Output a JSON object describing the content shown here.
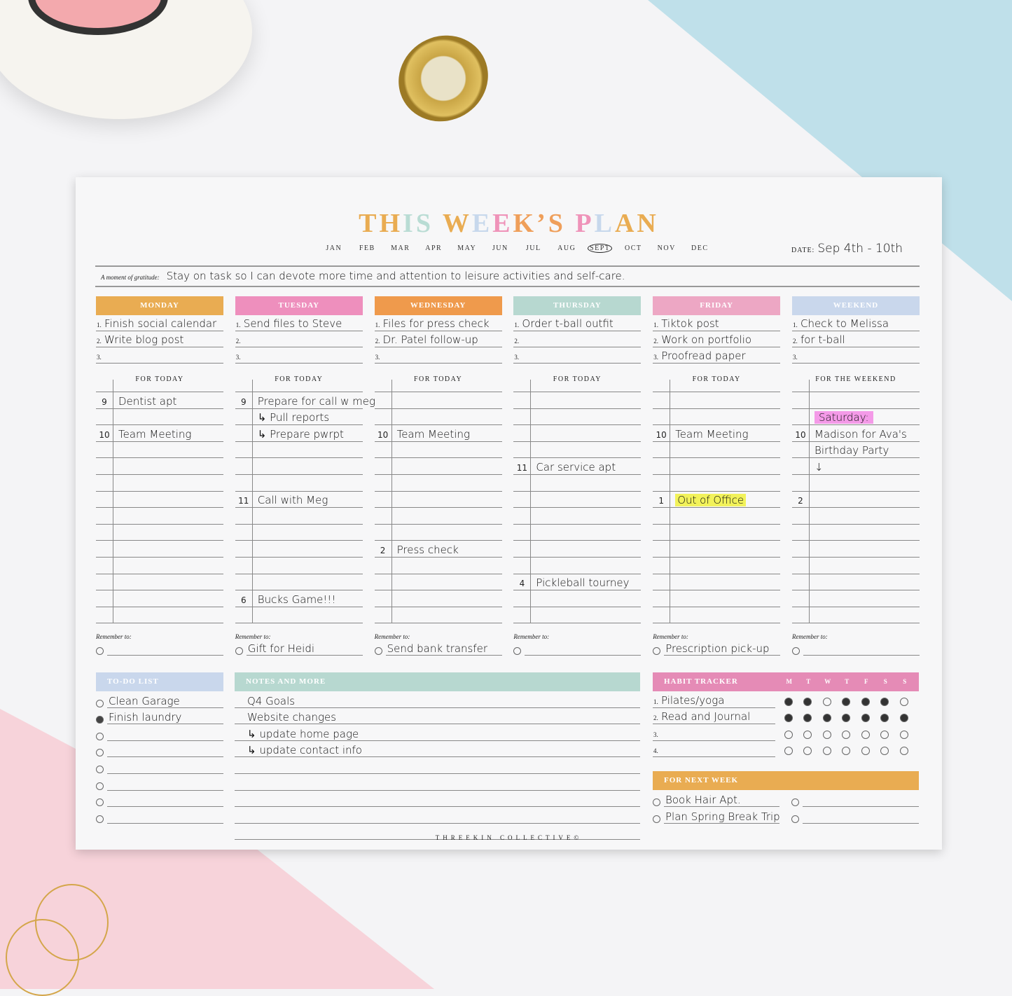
{
  "title": {
    "letters": [
      "T",
      "H",
      "I",
      "S",
      " ",
      "W",
      "E",
      "E",
      "K",
      "’",
      "S",
      " ",
      "P",
      "L",
      "A",
      "N"
    ],
    "colors": [
      "#e9ac52",
      "#e9ac52",
      "#b9dcd4",
      "#b9dcd4",
      "",
      "#e9ac52",
      "#c7d8ec",
      "#ef93b9",
      "#ef9f5a",
      "#ef9f5a",
      "#ef9f5a",
      "",
      "#ef93b9",
      "#c7d8ec",
      "#e9ac52",
      "#e9ac52"
    ]
  },
  "months": [
    "JAN",
    "FEB",
    "MAR",
    "APR",
    "MAY",
    "JUN",
    "JUL",
    "AUG",
    "SEPT",
    "OCT",
    "NOV",
    "DEC"
  ],
  "selected_month": "SEPT",
  "date": {
    "label": "DATE:",
    "value": "Sep 4th - 10th"
  },
  "gratitude": {
    "label": "A moment of gratitude:",
    "text": "Stay on task so I can devote more time and attention to leisure activities and self-care."
  },
  "days": [
    {
      "name": "MONDAY",
      "color": "#e9ac52",
      "tasks": [
        "Finish social calendar",
        "Write blog post",
        ""
      ],
      "sub": "FOR TODAY",
      "slots": [
        [
          "9",
          "Dentist apt"
        ],
        [
          "",
          ""
        ],
        [
          "10",
          "Team Meeting"
        ],
        [
          "",
          ""
        ],
        [
          "",
          ""
        ],
        [
          "",
          ""
        ],
        [
          "",
          ""
        ],
        [
          "",
          ""
        ],
        [
          "",
          ""
        ],
        [
          "",
          ""
        ],
        [
          "",
          ""
        ],
        [
          "",
          ""
        ],
        [
          "",
          ""
        ],
        [
          "",
          ""
        ]
      ],
      "remember": ""
    },
    {
      "name": "TUESDAY",
      "color": "#ee8fbd",
      "tasks": [
        "Send files to Steve",
        "",
        ""
      ],
      "sub": "FOR TODAY",
      "slots": [
        [
          "9",
          "Prepare for call w meg"
        ],
        [
          "",
          "↳ Pull reports"
        ],
        [
          "",
          "↳ Prepare pwrpt"
        ],
        [
          "",
          ""
        ],
        [
          "",
          ""
        ],
        [
          "",
          ""
        ],
        [
          "11",
          "Call with Meg"
        ],
        [
          "",
          ""
        ],
        [
          "",
          ""
        ],
        [
          "",
          ""
        ],
        [
          "",
          ""
        ],
        [
          "",
          ""
        ],
        [
          "6",
          "Bucks Game!!!"
        ],
        [
          "",
          ""
        ]
      ],
      "remember": "Gift for Heidi"
    },
    {
      "name": "WEDNESDAY",
      "color": "#ef9a4c",
      "tasks": [
        "Files for press check",
        "Dr. Patel follow-up",
        ""
      ],
      "sub": "FOR TODAY",
      "slots": [
        [
          "",
          ""
        ],
        [
          "",
          ""
        ],
        [
          "10",
          "Team Meeting"
        ],
        [
          "",
          ""
        ],
        [
          "",
          ""
        ],
        [
          "",
          ""
        ],
        [
          "",
          ""
        ],
        [
          "",
          ""
        ],
        [
          "",
          ""
        ],
        [
          "2",
          "Press check"
        ],
        [
          "",
          ""
        ],
        [
          "",
          ""
        ],
        [
          "",
          ""
        ],
        [
          "",
          ""
        ]
      ],
      "remember": "Send bank transfer"
    },
    {
      "name": "THURSDAY",
      "color": "#b7d8d0",
      "tasks": [
        "Order t-ball outfit",
        "",
        ""
      ],
      "sub": "FOR TODAY",
      "slots": [
        [
          "",
          ""
        ],
        [
          "",
          ""
        ],
        [
          "",
          ""
        ],
        [
          "",
          ""
        ],
        [
          "11",
          "Car service apt"
        ],
        [
          "",
          ""
        ],
        [
          "",
          ""
        ],
        [
          "",
          ""
        ],
        [
          "",
          ""
        ],
        [
          "",
          ""
        ],
        [
          "",
          ""
        ],
        [
          "4",
          "Pickleball tourney"
        ],
        [
          "",
          ""
        ],
        [
          "",
          ""
        ]
      ],
      "remember": ""
    },
    {
      "name": "FRIDAY",
      "color": "#eda7c4",
      "tasks": [
        "Tiktok post",
        "Work on portfolio",
        "Proofread paper"
      ],
      "sub": "FOR TODAY",
      "slots": [
        [
          "",
          ""
        ],
        [
          "",
          ""
        ],
        [
          "10",
          "Team Meeting"
        ],
        [
          "",
          ""
        ],
        [
          "",
          ""
        ],
        [
          "",
          ""
        ],
        [
          "1",
          "Out of Office"
        ],
        [
          "",
          ""
        ],
        [
          "",
          ""
        ],
        [
          "",
          ""
        ],
        [
          "",
          ""
        ],
        [
          "",
          ""
        ],
        [
          "",
          ""
        ],
        [
          "",
          ""
        ]
      ],
      "remember": "Prescription pick-up"
    },
    {
      "name": "WEEKEND",
      "color": "#c9d7ec",
      "tasks": [
        "Check to Melissa",
        "for t-ball",
        ""
      ],
      "sub": "FOR THE WEEKEND",
      "slots": [
        [
          "",
          ""
        ],
        [
          "",
          "Saturday:"
        ],
        [
          "10",
          "Madison for Ava's"
        ],
        [
          "",
          "Birthday Party"
        ],
        [
          "",
          "↓"
        ],
        [
          "",
          ""
        ],
        [
          "2",
          ""
        ],
        [
          "",
          ""
        ],
        [
          "",
          ""
        ],
        [
          "",
          ""
        ],
        [
          "",
          ""
        ],
        [
          "",
          ""
        ],
        [
          "",
          ""
        ],
        [
          "",
          ""
        ]
      ],
      "remember": ""
    }
  ],
  "highlights": {
    "Out of Office": "yellow",
    "Saturday:": "pink"
  },
  "remember_label": "Remember to:",
  "todo": {
    "title": "TO-DO LIST",
    "color": "#c9d7ec",
    "items": [
      {
        "text": "Clean Garage",
        "done": false
      },
      {
        "text": "Finish laundry",
        "done": true
      },
      {
        "text": "",
        "done": false
      },
      {
        "text": "",
        "done": false
      },
      {
        "text": "",
        "done": false
      },
      {
        "text": "",
        "done": false
      },
      {
        "text": "",
        "done": false
      },
      {
        "text": "",
        "done": false
      }
    ]
  },
  "notes": {
    "title": "NOTES AND MORE",
    "color": "#b7d8d0",
    "lines": [
      "Q4 Goals",
      "Website changes",
      "↳ update home page",
      "↳ update contact info",
      "",
      "",
      "",
      "",
      ""
    ]
  },
  "habit": {
    "title": "HABIT TRACKER",
    "color": "#e58bb6",
    "days": [
      "M",
      "T",
      "W",
      "T",
      "F",
      "S",
      "S"
    ],
    "rows": [
      {
        "text": "Pilates/yoga",
        "checks": [
          1,
          1,
          0,
          1,
          1,
          1,
          0
        ]
      },
      {
        "text": "Read and Journal",
        "checks": [
          1,
          1,
          1,
          1,
          1,
          1,
          1
        ]
      },
      {
        "text": "",
        "checks": [
          0,
          0,
          0,
          0,
          0,
          0,
          0
        ]
      },
      {
        "text": "",
        "checks": [
          0,
          0,
          0,
          0,
          0,
          0,
          0
        ]
      }
    ]
  },
  "next_week": {
    "title": "FOR NEXT WEEK",
    "color": "#e9ac52",
    "items": [
      "Book Hair Apt.",
      "Plan Spring Break Trip",
      "",
      ""
    ]
  },
  "footer": "THREEKIN COLLECTIVE©"
}
